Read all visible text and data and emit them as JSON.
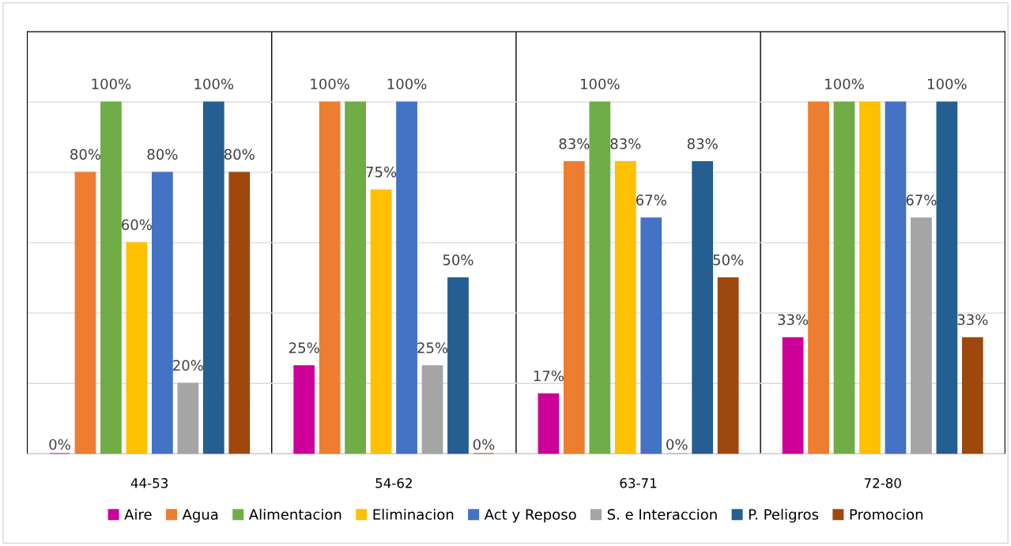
{
  "chart_data": {
    "type": "bar",
    "categories": [
      "44-53",
      "54-62",
      "63-71",
      "72-80"
    ],
    "series": [
      {
        "name": "Aire",
        "color": "#cc0099",
        "values": [
          0,
          25,
          17,
          33
        ],
        "value_labels": [
          "0%",
          "25%",
          "17%",
          "33%"
        ]
      },
      {
        "name": "Agua",
        "color": "#ed7d31",
        "values": [
          80,
          100,
          83,
          100
        ],
        "value_labels": [
          "80%",
          "100%",
          "83%",
          null
        ]
      },
      {
        "name": "Alimentacion",
        "color": "#70ad47",
        "values": [
          100,
          100,
          100,
          100
        ],
        "value_labels": [
          "100%",
          null,
          "100%",
          "100%"
        ]
      },
      {
        "name": "Eliminacion",
        "color": "#ffc000",
        "values": [
          60,
          75,
          83,
          100
        ],
        "value_labels": [
          "60%",
          "75%",
          "83%",
          null
        ]
      },
      {
        "name": "Act y Reposo",
        "color": "#4472c4",
        "values": [
          80,
          100,
          67,
          100
        ],
        "value_labels": [
          "80%",
          "100%",
          "67%",
          null
        ]
      },
      {
        "name": "S. e Interaccion",
        "color": "#a5a5a5",
        "values": [
          20,
          25,
          0,
          67
        ],
        "value_labels": [
          "20%",
          "25%",
          "0%",
          "67%"
        ]
      },
      {
        "name": "P. Peligros",
        "color": "#255e91",
        "values": [
          100,
          50,
          83,
          100
        ],
        "value_labels": [
          "100%",
          "50%",
          "83%",
          "100%"
        ]
      },
      {
        "name": "Promocion",
        "color": "#9e480e",
        "values": [
          80,
          0,
          50,
          33
        ],
        "value_labels": [
          "80%",
          "0%",
          "50%",
          "33%"
        ]
      }
    ],
    "ylim": [
      0,
      120
    ],
    "yticks": [
      {
        "value": 0,
        "label": null
      },
      {
        "value": 20,
        "label": null
      },
      {
        "value": 40,
        "label": null
      },
      {
        "value": 60,
        "label": null
      },
      {
        "value": 80,
        "label": null
      },
      {
        "value": 100,
        "label": null
      },
      {
        "value": 120,
        "label": null
      }
    ],
    "tick_labels": "x",
    "grid": true,
    "legend": "bottom"
  }
}
